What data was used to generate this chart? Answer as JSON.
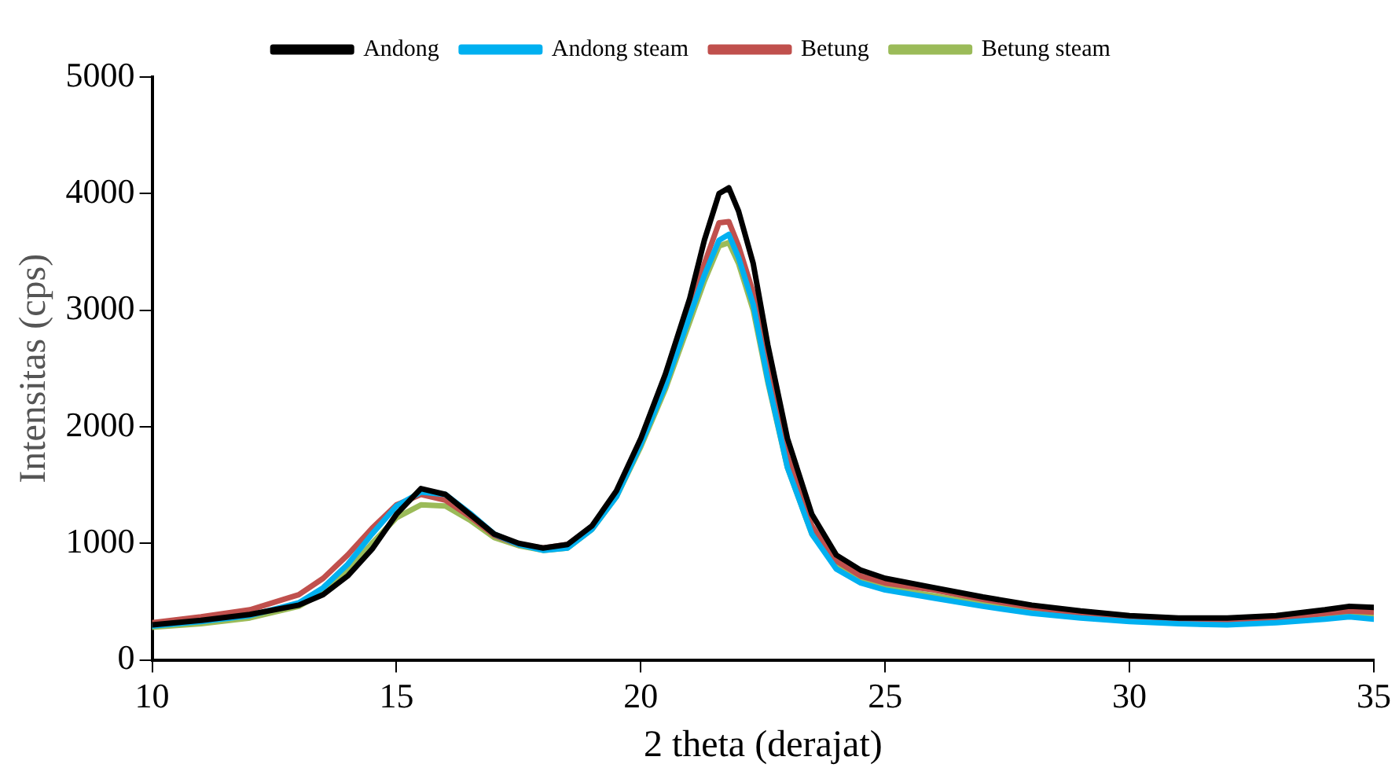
{
  "chart_data": {
    "type": "line",
    "xlabel": "2 theta (derajat)",
    "ylabel": "Intensitas (cps)",
    "x": [
      10,
      11,
      12,
      13,
      13.5,
      14,
      14.5,
      15,
      15.5,
      16,
      16.5,
      17,
      17.5,
      18,
      18.5,
      19,
      19.5,
      20,
      20.5,
      21,
      21.3,
      21.6,
      21.8,
      22,
      22.3,
      22.6,
      23,
      23.5,
      24,
      24.5,
      25,
      26,
      27,
      28,
      29,
      30,
      31,
      32,
      33,
      34,
      34.5,
      35
    ],
    "series": [
      {
        "name": "Andong",
        "color": "#000000",
        "values": [
          300,
          340,
          390,
          470,
          560,
          720,
          950,
          1250,
          1470,
          1420,
          1250,
          1080,
          1000,
          960,
          990,
          1150,
          1450,
          1900,
          2450,
          3100,
          3600,
          4000,
          4050,
          3850,
          3400,
          2700,
          1900,
          1250,
          900,
          770,
          700,
          620,
          540,
          470,
          420,
          380,
          360,
          360,
          380,
          430,
          460,
          450
        ]
      },
      {
        "name": "Andong steam",
        "color": "#00b0f0",
        "values": [
          290,
          330,
          380,
          490,
          620,
          820,
          1080,
          1320,
          1440,
          1420,
          1260,
          1080,
          990,
          940,
          960,
          1120,
          1400,
          1850,
          2350,
          2950,
          3300,
          3600,
          3650,
          3450,
          3050,
          2400,
          1650,
          1080,
          780,
          660,
          600,
          530,
          460,
          400,
          360,
          330,
          310,
          300,
          320,
          350,
          370,
          350
        ]
      },
      {
        "name": "Betung",
        "color": "#c0504d",
        "values": [
          320,
          370,
          430,
          560,
          700,
          900,
          1130,
          1330,
          1420,
          1370,
          1230,
          1070,
          990,
          960,
          990,
          1140,
          1430,
          1880,
          2400,
          3000,
          3400,
          3750,
          3760,
          3550,
          3150,
          2500,
          1750,
          1150,
          850,
          720,
          660,
          600,
          520,
          450,
          400,
          370,
          350,
          340,
          350,
          400,
          420,
          410
        ]
      },
      {
        "name": "Betung steam",
        "color": "#9bbb59",
        "values": [
          280,
          310,
          360,
          460,
          580,
          770,
          1000,
          1220,
          1330,
          1320,
          1200,
          1050,
          980,
          940,
          960,
          1120,
          1400,
          1830,
          2320,
          2900,
          3250,
          3550,
          3580,
          3400,
          3000,
          2380,
          1650,
          1080,
          800,
          680,
          620,
          550,
          480,
          410,
          370,
          340,
          320,
          320,
          340,
          370,
          390,
          380
        ]
      }
    ],
    "xlim": [
      10,
      35
    ],
    "xticks": [
      10,
      15,
      20,
      25,
      30,
      35
    ],
    "ylim": [
      0,
      5000
    ],
    "yticks": [
      0,
      1000,
      2000,
      3000,
      4000,
      5000
    ],
    "grid": false,
    "legend": "top",
    "marker": "none",
    "line_style": "solid"
  }
}
